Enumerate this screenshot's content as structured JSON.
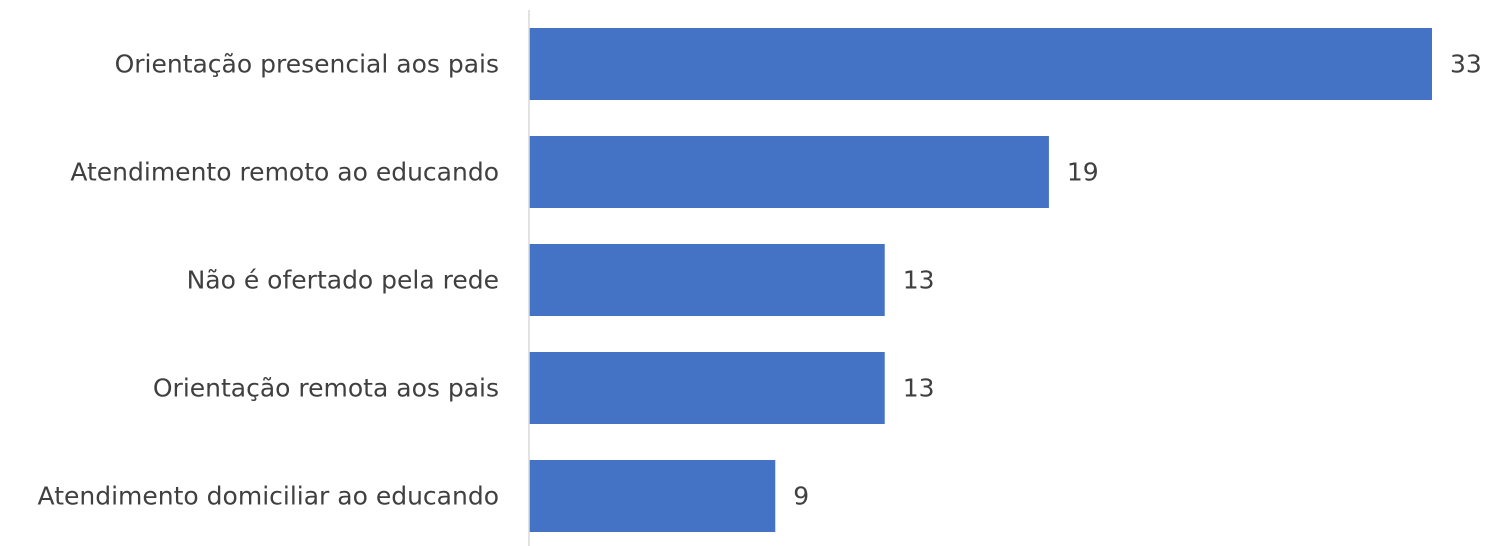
{
  "chart_data": {
    "type": "bar",
    "orientation": "horizontal",
    "categories": [
      "Orientação presencial aos pais",
      "Atendimento remoto ao educando",
      "Não é ofertado pela rede",
      "Orientação remota aos pais",
      "Atendimento domiciliar ao educando"
    ],
    "values": [
      33,
      19,
      13,
      13,
      9
    ],
    "title": "",
    "xlabel": "",
    "ylabel": "",
    "xlim": [
      0,
      33
    ],
    "grid": false,
    "legend": "none",
    "bar_color": "#4472C4",
    "axis_color": "#D9D9D9",
    "text_color": "#404040"
  }
}
